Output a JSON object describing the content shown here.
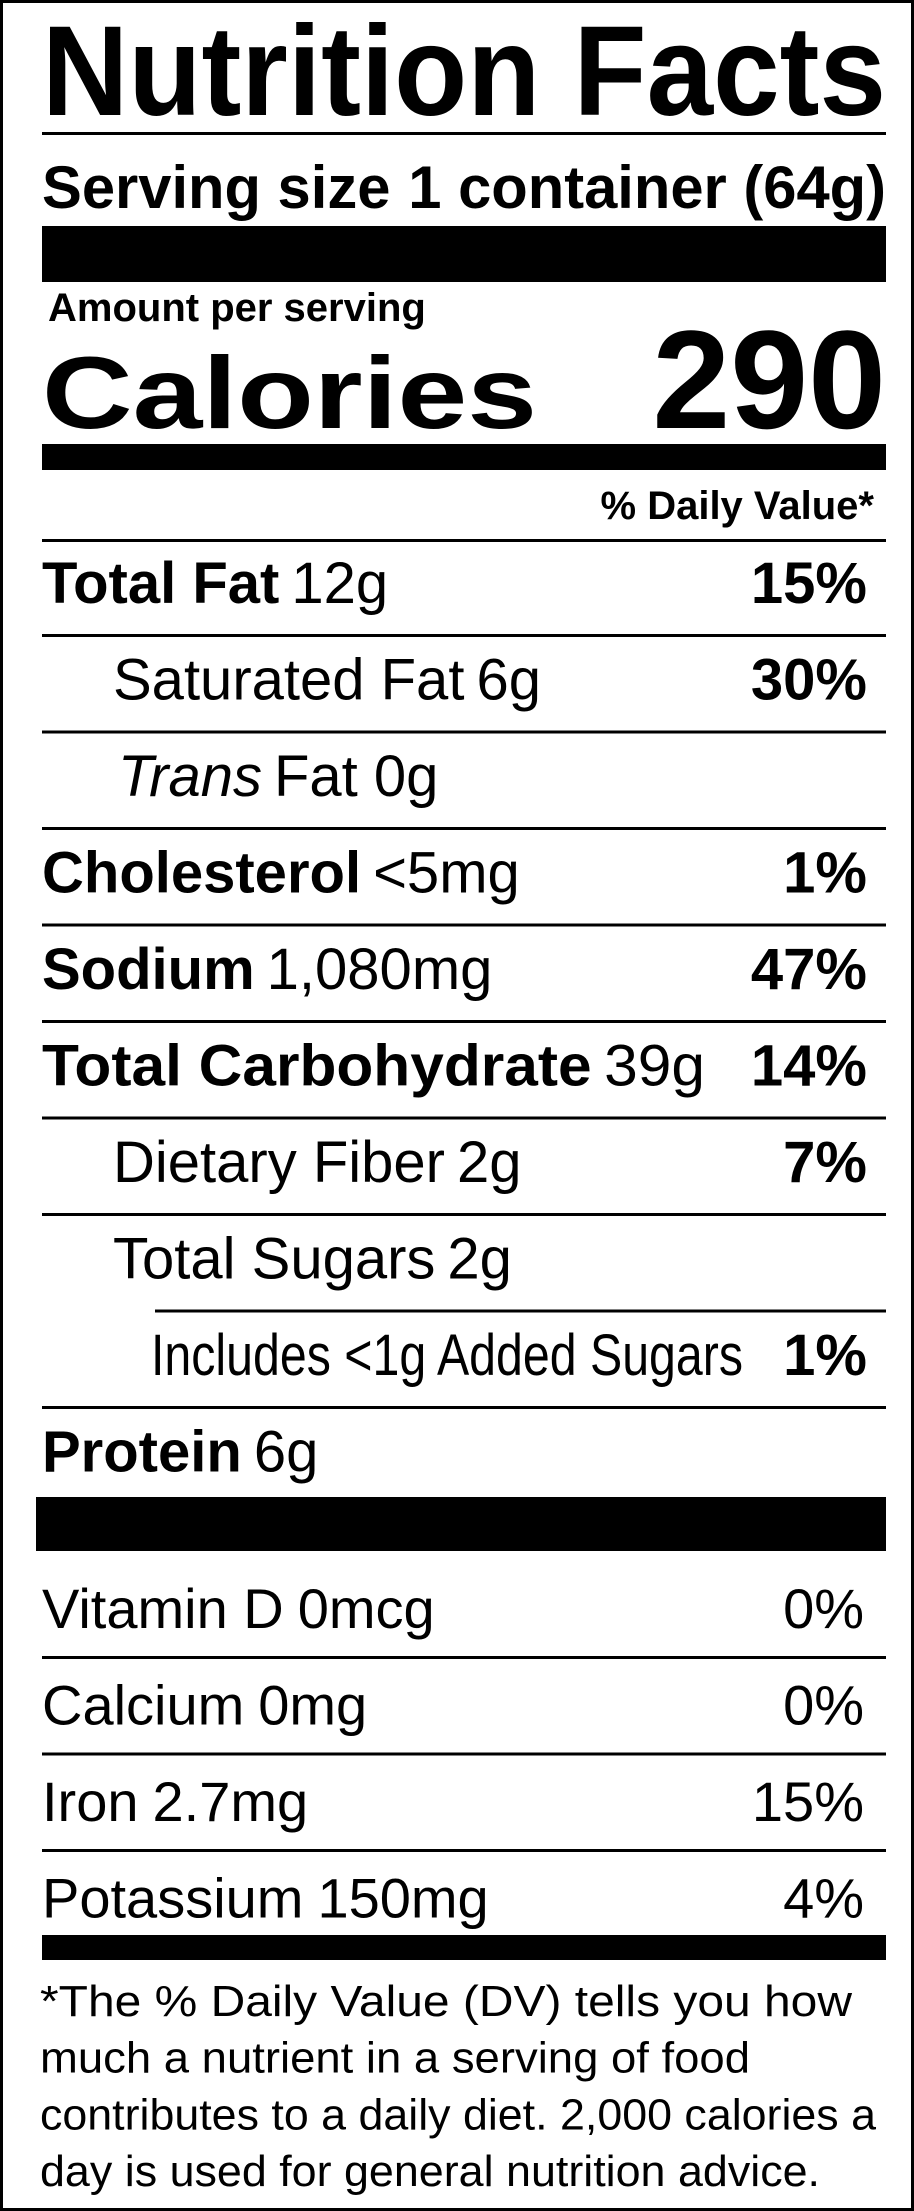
{
  "title": "Nutrition Facts",
  "serving": {
    "label": "Serving size",
    "amount": "1 container (64g)"
  },
  "amount_per_serving": "Amount per serving",
  "calories": {
    "label": "Calories",
    "value": "290"
  },
  "daily_value_header": "% Daily Value*",
  "nutrients": [
    {
      "name": "Total Fat",
      "amount": "12g",
      "dv": "15%"
    },
    {
      "name": "Saturated Fat",
      "amount": "6g",
      "dv": "30%"
    },
    {
      "name": "Trans",
      "amount": "Fat 0g"
    },
    {
      "name": "Cholesterol",
      "amount": "<5mg",
      "dv": "1%"
    },
    {
      "name": "Sodium",
      "amount": "1,080mg",
      "dv": "47%"
    },
    {
      "name": "Total Carbohydrate",
      "amount": "39g",
      "dv": "14%"
    },
    {
      "name": "Dietary Fiber",
      "amount": "2g",
      "dv": "7%"
    },
    {
      "name": "Total Sugars",
      "amount": "2g"
    },
    {
      "name": "Includes <1g Added Sugars",
      "dv": "1%"
    },
    {
      "name": "Protein",
      "amount": "6g"
    }
  ],
  "vitamins": [
    {
      "name": "Vitamin D",
      "amount": "0mcg",
      "dv": "0%"
    },
    {
      "name": "Calcium",
      "amount": "0mg",
      "dv": "0%"
    },
    {
      "name": "Iron",
      "amount": "2.7mg",
      "dv": "15%"
    },
    {
      "name": "Potassium",
      "amount": "150mg",
      "dv": "4%"
    }
  ],
  "footnote": [
    "*The % Daily Value (DV) tells you how",
    "much a nutrient in a serving of food",
    "contributes to a daily diet. 2,000 calories a",
    "day is used for general nutrition advice."
  ]
}
